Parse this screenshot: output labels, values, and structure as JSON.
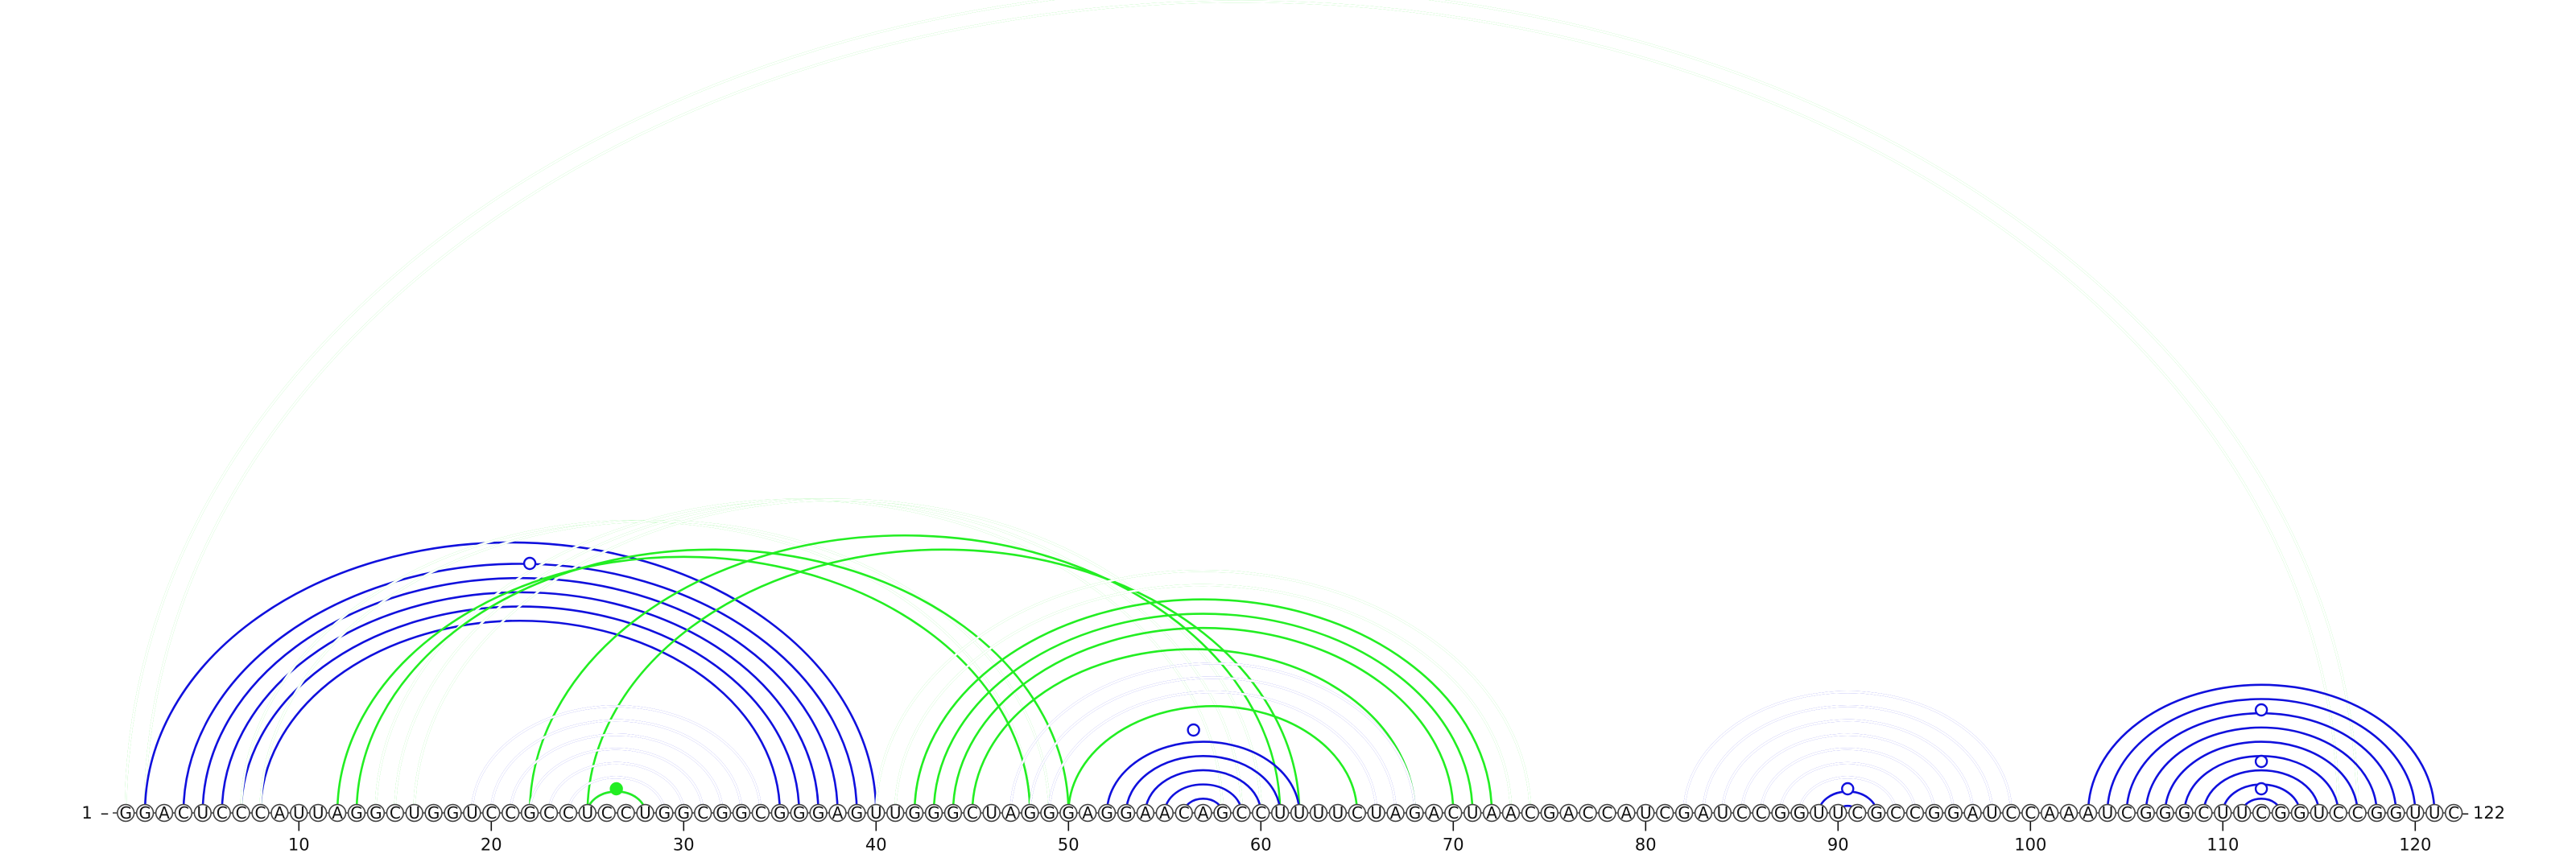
{
  "sequence": "GGACUCCCAUUAGGCUGGUCCGCCUCCUGGCGGCGGGAGUUGGGCUAGGGAGGAACAGCCUUUUCUAGACUAACGACCAUCGAUCCGGUUCGCCGGAUCCAAAUCGGGCUUCGGUCCGGUUC",
  "start_label": "1",
  "end_label": "122",
  "tick_labels": [
    "10",
    "20",
    "30",
    "40",
    "50",
    "60",
    "70",
    "80",
    "90",
    "100",
    "110",
    "120"
  ],
  "colors": {
    "structure_a": "#1010dd",
    "structure_b": "#22ee22"
  },
  "arcs": [
    {
      "color": "structure_b",
      "style": "double",
      "pairs": [
        [
          1,
          117
        ],
        [
          2,
          116
        ]
      ]
    },
    {
      "color": "structure_a",
      "style": "single",
      "pairs": [
        [
          2,
          40
        ],
        [
          4,
          39
        ],
        [
          5,
          38
        ],
        [
          6,
          37
        ],
        [
          7,
          36
        ],
        [
          8,
          35
        ]
      ]
    },
    {
      "color": "structure_b",
      "style": "double",
      "pairs": [
        [
          7,
          48
        ],
        [
          8,
          49
        ],
        [
          14,
          58
        ],
        [
          15,
          59
        ],
        [
          16,
          60
        ]
      ]
    },
    {
      "color": "structure_b",
      "style": "single",
      "pairs": [
        [
          12,
          48
        ],
        [
          13,
          50
        ],
        [
          22,
          61
        ],
        [
          25,
          62
        ]
      ]
    },
    {
      "color": "structure_a",
      "style": "double",
      "pairs": [
        [
          19,
          34
        ],
        [
          20,
          33
        ],
        [
          21,
          32
        ],
        [
          22,
          31
        ],
        [
          23,
          30
        ],
        [
          24,
          29
        ],
        [
          25,
          28
        ]
      ]
    },
    {
      "color": "structure_b",
      "style": "single",
      "pairs": [
        [
          25,
          28
        ]
      ]
    },
    {
      "color": "structure_b",
      "style": "double",
      "pairs": [
        [
          40,
          74
        ],
        [
          41,
          73
        ]
      ]
    },
    {
      "color": "structure_b",
      "style": "single",
      "pairs": [
        [
          42,
          72
        ],
        [
          43,
          71
        ],
        [
          44,
          70
        ],
        [
          45,
          68
        ],
        [
          50,
          65
        ]
      ]
    },
    {
      "color": "structure_a",
      "style": "double",
      "pairs": [
        [
          47,
          68
        ],
        [
          48,
          67
        ],
        [
          49,
          66
        ]
      ]
    },
    {
      "color": "structure_a",
      "style": "single",
      "pairs": [
        [
          52,
          62
        ],
        [
          53,
          61
        ],
        [
          54,
          60
        ],
        [
          55,
          59
        ],
        [
          56,
          58
        ]
      ]
    },
    {
      "color": "structure_a",
      "style": "double",
      "pairs": [
        [
          82,
          99
        ],
        [
          83,
          98
        ],
        [
          84,
          97
        ],
        [
          85,
          96
        ],
        [
          86,
          95
        ],
        [
          87,
          94
        ],
        [
          88,
          93
        ]
      ]
    },
    {
      "color": "structure_a",
      "style": "single",
      "pairs": [
        [
          89,
          92
        ],
        [
          90,
          91
        ]
      ]
    },
    {
      "color": "structure_a",
      "style": "single",
      "pairs": [
        [
          103,
          121
        ],
        [
          104,
          120
        ],
        [
          105,
          119
        ],
        [
          106,
          118
        ],
        [
          107,
          117
        ],
        [
          108,
          116
        ],
        [
          109,
          115
        ],
        [
          110,
          114
        ],
        [
          111,
          113
        ]
      ]
    }
  ],
  "markers": [
    {
      "pos": 22,
      "color": "structure_a",
      "fill": "open"
    },
    {
      "pos": 26.5,
      "color": "structure_b",
      "fill": "solid"
    },
    {
      "pos": 56.5,
      "color": "structure_a",
      "fill": "open"
    },
    {
      "pos": 90.5,
      "color": "structure_a",
      "fill": "open"
    },
    {
      "pos": 112,
      "color": "structure_a",
      "fill": "open"
    },
    {
      "pos": 112,
      "color": "structure_a",
      "fill": "open",
      "tier": "mid"
    },
    {
      "pos": 112,
      "color": "structure_a",
      "fill": "open",
      "tier": "top"
    }
  ]
}
